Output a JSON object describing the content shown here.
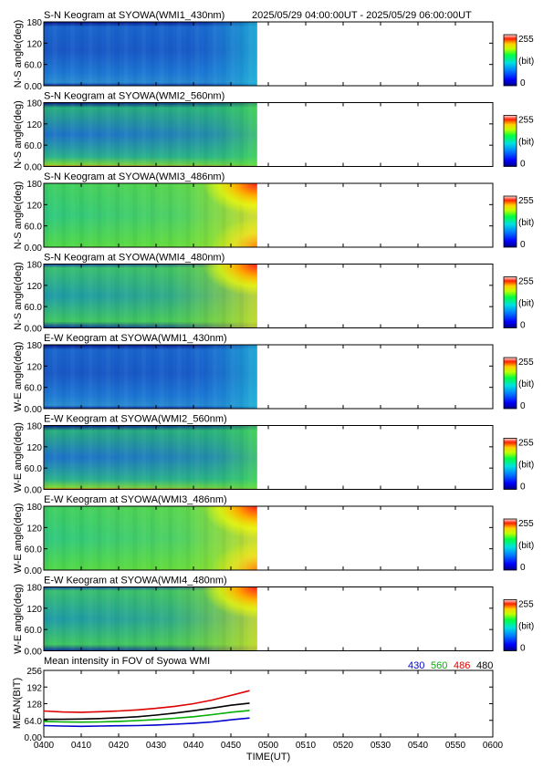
{
  "header": {
    "time_range": "2025/05/29 04:00:00UT - 2025/05/29 06:00:00UT"
  },
  "colors": {
    "c430": "#0000cc",
    "c560": "#00b000",
    "c486": "#dd0000",
    "c480": "#000000"
  },
  "colorbar": {
    "max_label": "255",
    "unit_label": "(bit)",
    "min_label": "0"
  },
  "panels": [
    {
      "title": "S-N Keogram at SYOWA(WMI1_430nm)",
      "ylabel": "N-S angle(deg)",
      "yticks": [
        "180",
        "120",
        "60.0",
        "0.00"
      ],
      "data_end": "0457",
      "style": "blue"
    },
    {
      "title": "S-N Keogram at SYOWA(WMI2_560nm)",
      "ylabel": "N-S angle(deg)",
      "yticks": [
        "180",
        "120",
        "60.0",
        "0.00"
      ],
      "data_end": "0457",
      "style": "bluegreen"
    },
    {
      "title": "S-N Keogram at SYOWA(WMI3_486nm)",
      "ylabel": "N-S angle(deg)",
      "yticks": [
        "180",
        "120",
        "60.0",
        "0.00"
      ],
      "data_end": "0457",
      "style": "greenwarm"
    },
    {
      "title": "S-N Keogram at SYOWA(WMI4_480nm)",
      "ylabel": "N-S angle(deg)",
      "yticks": [
        "180",
        "120",
        "60.0",
        "0.00"
      ],
      "data_end": "0457",
      "style": "greenteal"
    },
    {
      "title": "E-W Keogram at SYOWA(WMI1_430nm)",
      "ylabel": "W-E angle(deg)",
      "yticks": [
        "180",
        "120",
        "60.0",
        "0.00"
      ],
      "data_end": "0457",
      "style": "blue"
    },
    {
      "title": "E-W Keogram at SYOWA(WMI2_560nm)",
      "ylabel": "W-E angle(deg)",
      "yticks": [
        "180",
        "120",
        "60.0",
        "0.00"
      ],
      "data_end": "0457",
      "style": "bluegreen"
    },
    {
      "title": "E-W Keogram at SYOWA(WMI3_486nm)",
      "ylabel": "W-E angle(deg)",
      "yticks": [
        "180",
        "120",
        "60.0",
        "0.00"
      ],
      "data_end": "0457",
      "style": "greenwarm"
    },
    {
      "title": "E-W Keogram at SYOWA(WMI4_480nm)",
      "ylabel": "W-E angle(deg)",
      "yticks": [
        "180",
        "120",
        "60.0",
        "0.00"
      ],
      "data_end": "0457",
      "style": "greenteal"
    }
  ],
  "line_panel": {
    "title": "Mean intensity in FOV of Syowa WMI",
    "ylabel": "MEAN(BIT)",
    "yticks": [
      "256",
      "192",
      "128",
      "64.0",
      "0.00"
    ],
    "legend": [
      "430",
      "560",
      "486",
      "480"
    ]
  },
  "x_axis": {
    "label": "TIME(UT)",
    "ticks": [
      "0400",
      "0410",
      "0420",
      "0430",
      "0440",
      "0450",
      "0500",
      "0510",
      "0520",
      "0530",
      "0540",
      "0550",
      "0600"
    ]
  },
  "chart_data": {
    "type": "line",
    "title": "Mean intensity in FOV of Syowa WMI",
    "xlabel": "TIME(UT)",
    "ylabel": "MEAN(BIT)",
    "xlim": [
      "0400",
      "0600"
    ],
    "ylim": [
      0,
      256
    ],
    "x": [
      "0400",
      "0405",
      "0410",
      "0415",
      "0420",
      "0425",
      "0430",
      "0435",
      "0440",
      "0445",
      "0450",
      "0455"
    ],
    "series": [
      {
        "name": "430",
        "color": "#0000cc",
        "values": [
          44,
          42,
          41,
          42,
          43,
          44,
          46,
          49,
          53,
          58,
          66,
          73
        ]
      },
      {
        "name": "560",
        "color": "#00b000",
        "values": [
          60,
          58,
          57,
          58,
          60,
          63,
          67,
          72,
          78,
          86,
          95,
          102
        ]
      },
      {
        "name": "486",
        "color": "#dd0000",
        "values": [
          100,
          96,
          95,
          97,
          100,
          104,
          110,
          118,
          128,
          142,
          160,
          178
        ]
      },
      {
        "name": "480",
        "color": "#000000",
        "values": [
          68,
          68,
          69,
          71,
          74,
          78,
          84,
          92,
          101,
          111,
          122,
          130
        ]
      }
    ]
  }
}
